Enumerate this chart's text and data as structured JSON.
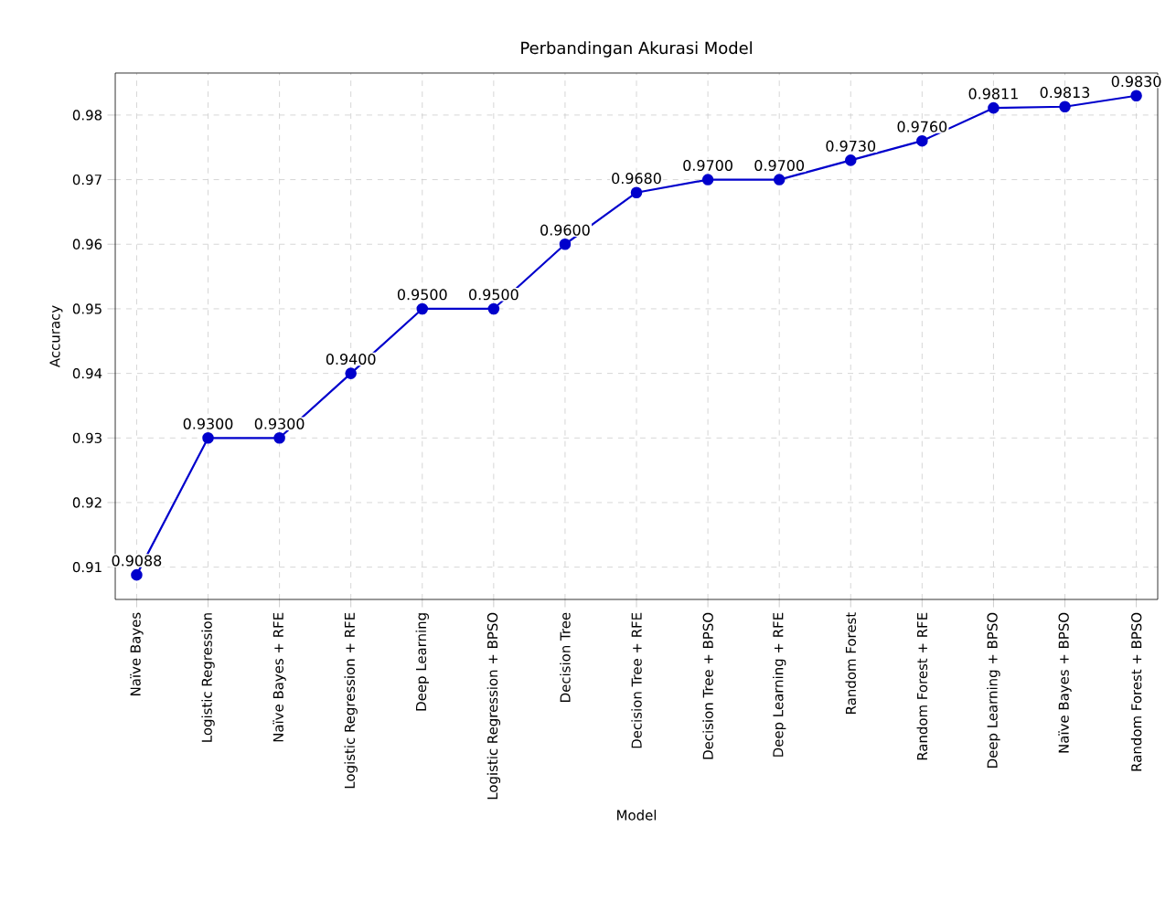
{
  "chart_data": {
    "type": "line",
    "title": "Perbandingan Akurasi Model",
    "xlabel": "Model",
    "ylabel": "Accuracy",
    "categories": [
      "Naïve Bayes",
      "Logistic Regression",
      "Naïve Bayes + RFE",
      "Logistic Regression + RFE",
      "Deep Learning",
      "Logistic Regression + BPSO",
      "Decision Tree",
      "Decision Tree + RFE",
      "Decision Tree + BPSO",
      "Deep Learning + RFE",
      "Random Forest",
      "Random Forest + RFE",
      "Deep Learning + BPSO",
      "Naïve Bayes + BPSO",
      "Random Forest + BPSO"
    ],
    "series": [
      {
        "color": "#0000cc",
        "values": [
          0.9088,
          0.93,
          0.93,
          0.94,
          0.95,
          0.95,
          0.96,
          0.968,
          0.97,
          0.97,
          0.973,
          0.976,
          0.9811,
          0.9813,
          0.983
        ],
        "value_labels": [
          "0.9088",
          "0.9300",
          "0.9300",
          "0.9400",
          "0.9500",
          "0.9500",
          "0.9600",
          "0.9680",
          "0.9700",
          "0.9700",
          "0.9730",
          "0.9760",
          "0.9811",
          "0.9813",
          "0.9830"
        ]
      }
    ],
    "ylim": [
      0.905,
      0.9865
    ],
    "yticks": [
      0.91,
      0.92,
      0.93,
      0.94,
      0.95,
      0.96,
      0.97,
      0.98
    ],
    "grid": true,
    "marker": "circle",
    "line_style": "solid"
  }
}
